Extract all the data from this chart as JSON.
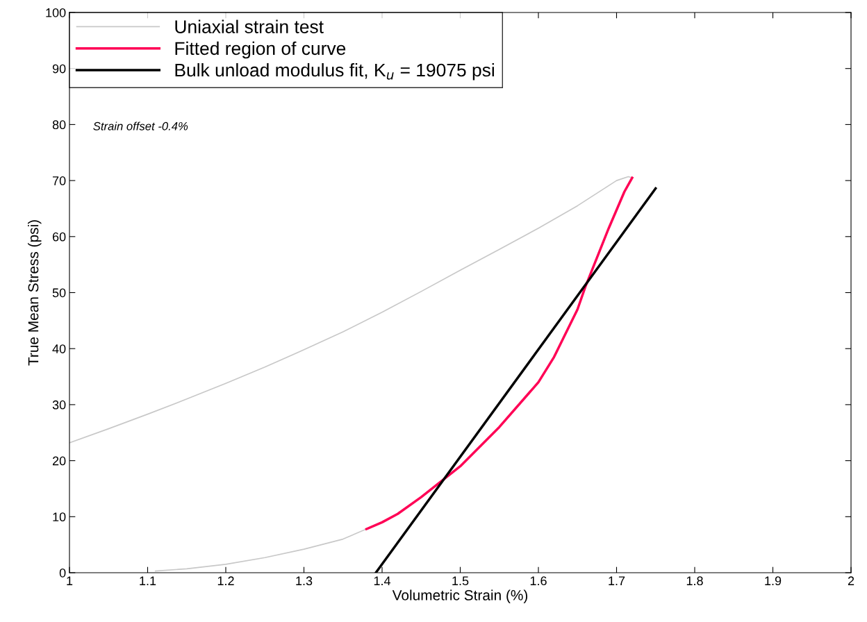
{
  "chart_data": {
    "type": "line",
    "xlabel": "Volumetric Strain (%)",
    "ylabel": "True Mean Stress (psi)",
    "xlim": [
      1,
      2
    ],
    "xticks": [
      1,
      1.1,
      1.2,
      1.3,
      1.4,
      1.5,
      1.6,
      1.7,
      1.8,
      1.9,
      2
    ],
    "ylim": [
      0,
      100
    ],
    "yticks": [
      0,
      10,
      20,
      30,
      40,
      50,
      60,
      70,
      80,
      90,
      100
    ],
    "grid": false,
    "legend": "top left",
    "marker": "none",
    "line_style": "solid",
    "annotations": [
      "Strain offset -0.4%"
    ],
    "series": [
      {
        "name": "Uniaxial strain test",
        "color": "#c8c8c8",
        "x": [
          1.0,
          1.05,
          1.1,
          1.15,
          1.2,
          1.25,
          1.3,
          1.35,
          1.4,
          1.45,
          1.5,
          1.55,
          1.6,
          1.65,
          1.7,
          1.715,
          1.72,
          null,
          1.38,
          1.35,
          1.3,
          1.25,
          1.2,
          1.15,
          1.11
        ],
        "values": [
          23.2,
          25.7,
          28.3,
          31.0,
          33.8,
          36.7,
          39.8,
          43.0,
          46.5,
          50.2,
          54.0,
          57.7,
          61.5,
          65.5,
          70.0,
          70.7,
          70.5,
          null,
          7.8,
          6.0,
          4.2,
          2.7,
          1.5,
          0.7,
          0.3
        ]
      },
      {
        "name": "Fitted region of curve",
        "color": "#ff0055",
        "x": [
          1.72,
          1.71,
          1.69,
          1.67,
          1.66,
          1.65,
          1.62,
          1.6,
          1.55,
          1.5,
          1.45,
          1.42,
          1.4,
          1.38
        ],
        "values": [
          70.5,
          68.0,
          61.5,
          54.5,
          51.0,
          47.0,
          38.5,
          34.0,
          26.0,
          19.0,
          13.5,
          10.5,
          9.0,
          7.8
        ]
      },
      {
        "name": "Bulk unload modulus fit, K$_{u}$ = 19075 psi",
        "color": "#000000",
        "x": [
          1.392,
          1.75
        ],
        "values": [
          0,
          68.6
        ]
      }
    ]
  }
}
